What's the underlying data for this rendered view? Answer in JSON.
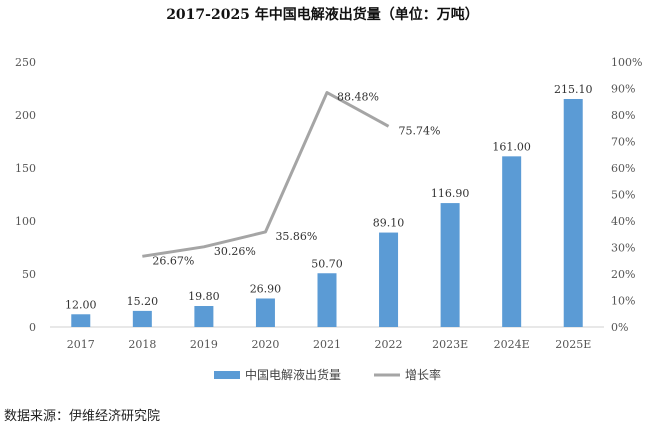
{
  "chart_data": {
    "type": "bar",
    "title": "2017-2025 年中国电解液出货量（单位：万吨）",
    "categories": [
      "2017",
      "2018",
      "2019",
      "2020",
      "2021",
      "2022",
      "2023E",
      "2024E",
      "2025E"
    ],
    "series": [
      {
        "name": "中国电解液出货量",
        "type": "bar",
        "axis": "left",
        "color": "#5B9BD5",
        "values": [
          12.0,
          15.2,
          19.8,
          26.9,
          50.7,
          89.1,
          116.9,
          161.0,
          215.1
        ],
        "labels": [
          "12.00",
          "15.20",
          "19.80",
          "26.90",
          "50.70",
          "89.10",
          "116.90",
          "161.00",
          "215.10"
        ]
      },
      {
        "name": "增长率",
        "type": "line",
        "axis": "right",
        "color": "#A5A5A5",
        "values": [
          null,
          26.67,
          30.26,
          35.86,
          88.48,
          75.74,
          null,
          null,
          null
        ],
        "labels": [
          null,
          "26.67%",
          "30.26%",
          "35.86%",
          "88.48%",
          "75.74%",
          null,
          null,
          null
        ]
      }
    ],
    "y_left": {
      "ylim": [
        0,
        250
      ],
      "ticks": [
        "0",
        "50",
        "100",
        "150",
        "200",
        "250"
      ]
    },
    "y_right": {
      "ylim": [
        0,
        100
      ],
      "ticks": [
        "0%",
        "10%",
        "20%",
        "30%",
        "40%",
        "50%",
        "60%",
        "70%",
        "80%",
        "90%",
        "100%"
      ]
    },
    "grid": false,
    "legend_position": "bottom"
  },
  "source": "数据来源：伊维经济研究院"
}
